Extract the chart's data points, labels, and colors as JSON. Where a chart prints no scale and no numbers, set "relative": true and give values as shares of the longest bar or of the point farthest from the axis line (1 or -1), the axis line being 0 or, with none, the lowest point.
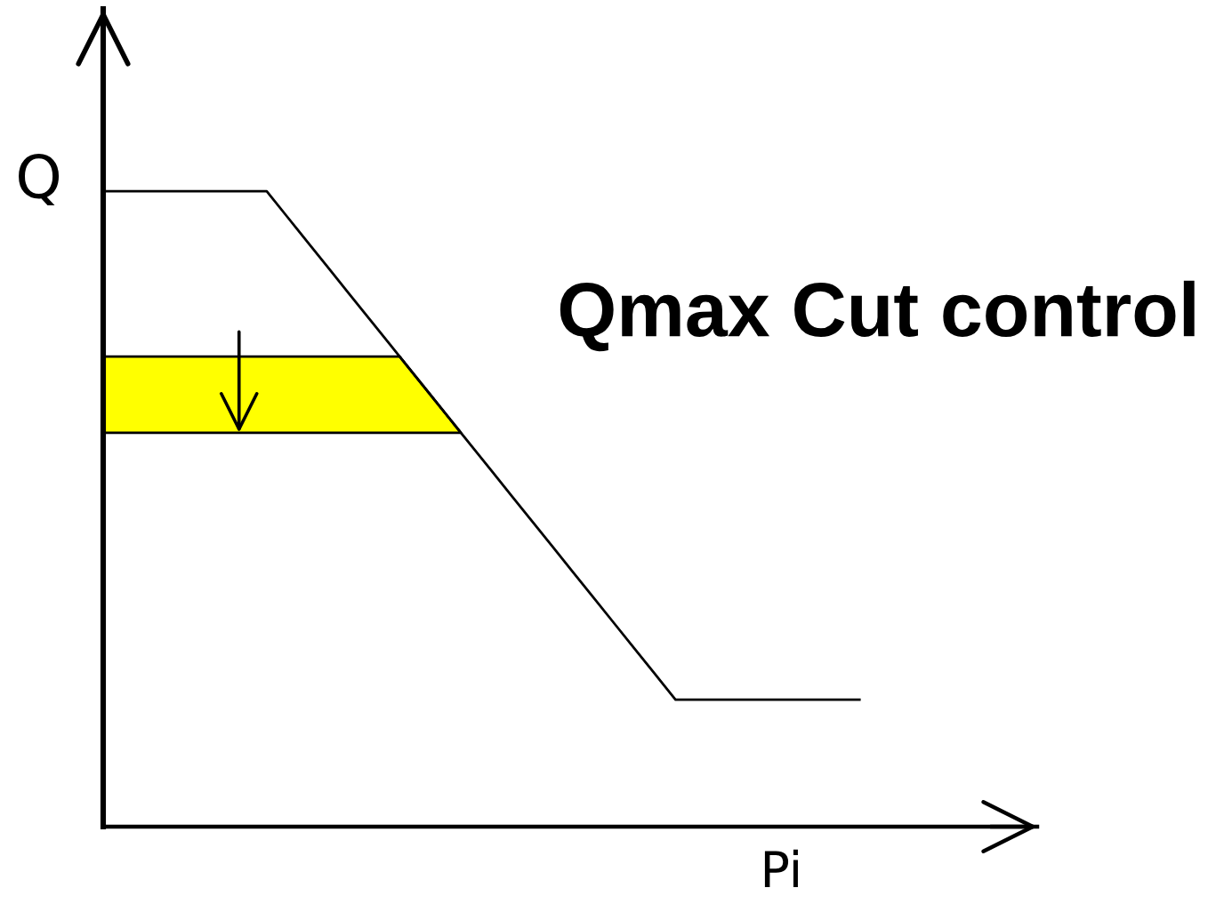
{
  "chart_data": {
    "type": "line",
    "title": "Qmax Cut control",
    "xlabel": "Pi",
    "ylabel": "Q",
    "relative": true,
    "categories": [
      null,
      null,
      null,
      null,
      null,
      null,
      null,
      null,
      null,
      null,
      null,
      null,
      null,
      null,
      null,
      null,
      null,
      null,
      null,
      null,
      null,
      null,
      null,
      null,
      null,
      null,
      null,
      null,
      null,
      null,
      null,
      null,
      null,
      null,
      null,
      null,
      null,
      null
    ],
    "values": [
      1,
      1,
      1,
      1,
      1,
      1,
      1,
      1,
      1,
      0.96,
      0.92,
      0.88,
      0.84,
      0.8,
      0.76,
      0.72,
      0.68,
      0.64,
      0.6,
      0.56,
      0.52,
      0.48,
      0.44,
      0.4,
      0.36,
      0.32,
      0.28,
      0.24,
      0.2,
      0.2,
      0.2,
      0.2,
      0.2,
      0.2,
      0.2,
      0.2,
      0.2,
      0.2
    ],
    "color": "#000000",
    "marker": "none",
    "line_style": "solid",
    "bands": [
      {
        "axis": "y",
        "from": 0.62,
        "to": 0.74,
        "color": "#ffff00"
      }
    ]
  }
}
